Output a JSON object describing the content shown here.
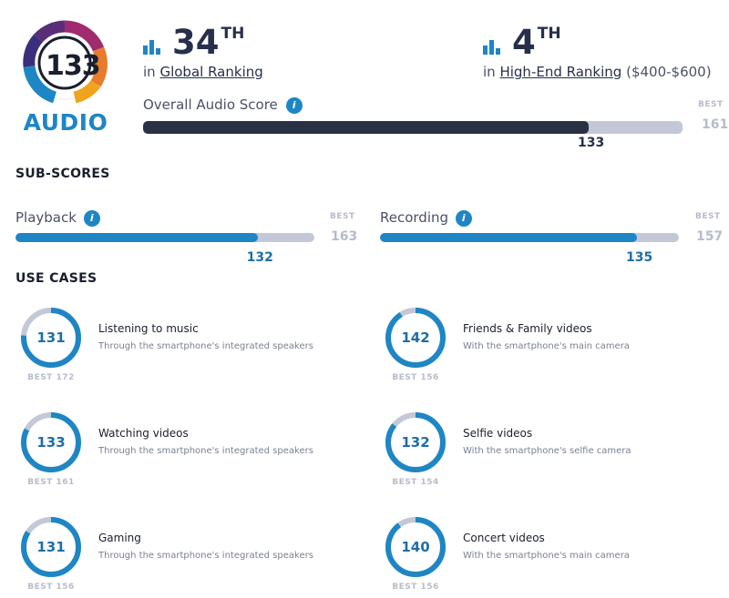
{
  "logo": {
    "score": "133",
    "word": "AUDIO"
  },
  "rankings": {
    "global": {
      "number": "34",
      "suffix": "TH",
      "prefix": "in",
      "link": "Global Ranking",
      "extra": ""
    },
    "segment": {
      "number": "4",
      "suffix": "TH",
      "prefix": "in",
      "link": "High-End Ranking",
      "extra": "($400-$600)"
    }
  },
  "overall": {
    "label": "Overall Audio Score",
    "info": "i",
    "value": 133,
    "value_text": "133",
    "best_tag": "BEST",
    "best": 161,
    "best_text": "161",
    "fill_color": "#2b3145"
  },
  "subscores": {
    "title": "SUB-SCORES",
    "items": [
      {
        "label": "Playback",
        "info": "i",
        "value": 132,
        "value_text": "132",
        "best_tag": "BEST",
        "best": 163,
        "best_text": "163"
      },
      {
        "label": "Recording",
        "info": "i",
        "value": 135,
        "value_text": "135",
        "best_tag": "BEST",
        "best": 157,
        "best_text": "157"
      }
    ],
    "fill_color": "#1e86c4"
  },
  "use_cases": {
    "title": "USE CASES",
    "items": [
      {
        "value": 131,
        "value_text": "131",
        "best": 172,
        "best_text": "BEST 172",
        "title": "Listening to music",
        "desc": "Through the smartphone's integrated speakers"
      },
      {
        "value": 142,
        "value_text": "142",
        "best": 156,
        "best_text": "BEST 156",
        "title": "Friends & Family videos",
        "desc": "With the smartphone's main camera"
      },
      {
        "value": 133,
        "value_text": "133",
        "best": 161,
        "best_text": "BEST 161",
        "title": "Watching videos",
        "desc": "Through the smartphone's integrated speakers"
      },
      {
        "value": 132,
        "value_text": "132",
        "best": 154,
        "best_text": "BEST 154",
        "title": "Selfie videos",
        "desc": "With the smartphone's selfie camera"
      },
      {
        "value": 131,
        "value_text": "131",
        "best": 156,
        "best_text": "BEST 156",
        "title": "Gaming",
        "desc": "Through the smartphone's integrated speakers"
      },
      {
        "value": 140,
        "value_text": "140",
        "best": 156,
        "best_text": "BEST 156",
        "title": "Concert videos",
        "desc": "With the smartphone's main camera"
      }
    ]
  },
  "colors": {
    "accent": "#1e86c4",
    "track": "#c3c8d6",
    "dark": "#2b3145",
    "best": "#b7bccb"
  }
}
